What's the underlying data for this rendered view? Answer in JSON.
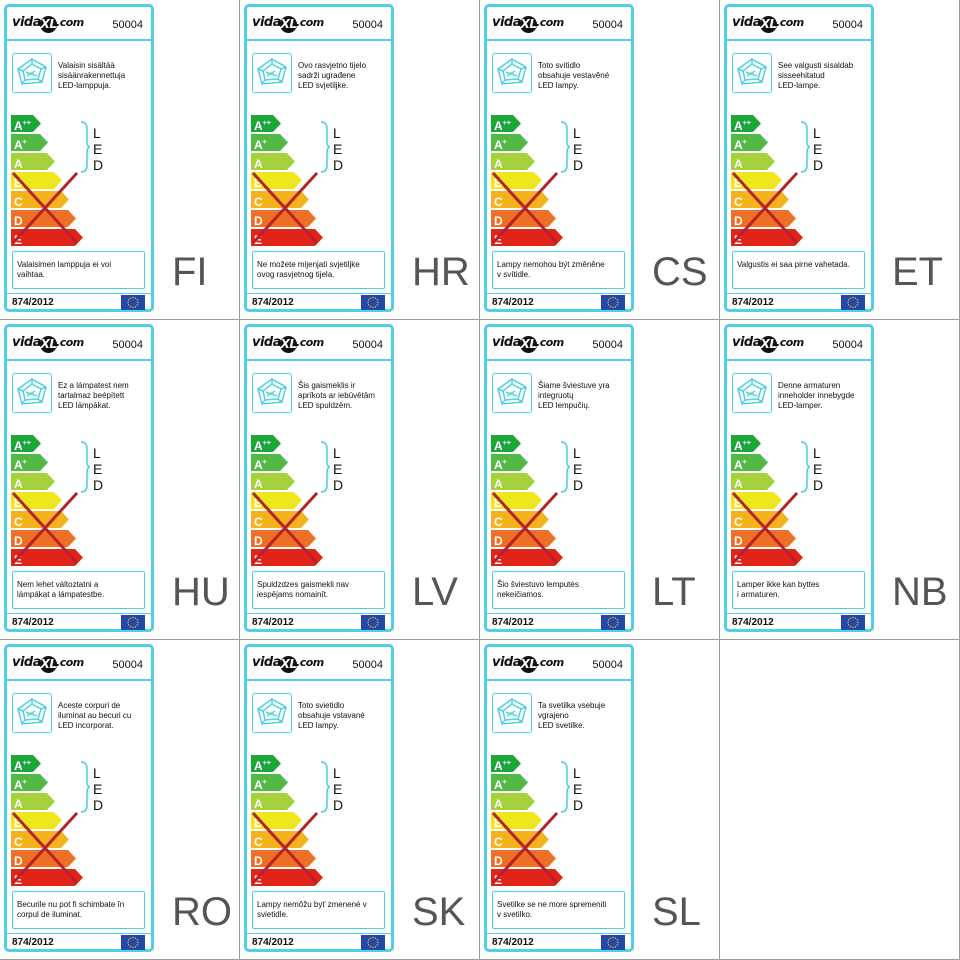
{
  "brand": {
    "name": "vida",
    "mark": "XL",
    "suffix": ".com"
  },
  "model": "50004",
  "led_letters": [
    "L",
    "E",
    "D"
  ],
  "energy_classes": [
    {
      "letter": "A",
      "sup": "++",
      "color": "#1ea53a"
    },
    {
      "letter": "A",
      "sup": "+",
      "color": "#52b947"
    },
    {
      "letter": "A",
      "sup": "",
      "color": "#a5d13d"
    },
    {
      "letter": "B",
      "sup": "",
      "color": "#f0e61c"
    },
    {
      "letter": "C",
      "sup": "",
      "color": "#f6b21c"
    },
    {
      "letter": "D",
      "sup": "",
      "color": "#ef6f24"
    },
    {
      "letter": "E",
      "sup": "",
      "color": "#e2231a"
    }
  ],
  "accent_color": "#4fd0e4",
  "cross_color": "#b5232a",
  "regulation": "874/2012",
  "icons": {
    "lamp": "lamp-icon",
    "eu": "eu-flag-icon",
    "brace": "brace-icon"
  },
  "labels": [
    {
      "lang": "FI",
      "description": "Valaisin sisältää\nsisäänrakennettuja\nLED-lamppuja.",
      "note": "Valaisimen lamppuja ei voi\nvaihtaa."
    },
    {
      "lang": "HR",
      "description": "Ovo rasvjetno tijelo\nsadrži ugrađene\nLED svjetiljke.",
      "note": "Ne možete mijenjati svjetiljke\novog rasvjetnog tijela."
    },
    {
      "lang": "CS",
      "description": "Toto svítidlo\nobsahuje vestavěné\nLED lampy.",
      "note": "Lampy nemohou být změněne\nv svítidle."
    },
    {
      "lang": "ET",
      "description": "See valgusti sisaldab\nsisseehitatud\nLED-lampe.",
      "note": "Valgustis ei saa pirne vahetada."
    },
    {
      "lang": "HU",
      "description": "Ez a lámpatest nem\ntartalmaz beépített\nLED lámpákat.",
      "note": "Nem lehet változtatni a\nlámpákat a lámpatestbe."
    },
    {
      "lang": "LV",
      "description": "Šis gaismeklis ir\naprīkots ar iebūvētām\nLED spuldzēm.",
      "note": "Spuldzdzes gaismekli nav\niespējams nomainīt."
    },
    {
      "lang": "LT",
      "description": "Šiame šviestuve yra\nintegruotų\nLED lempučių.",
      "note": "Šio šviestuvo lemputės\nnekeičiamos."
    },
    {
      "lang": "NB",
      "description": "Denne armaturen\ninneholder innebygde\nLED-lamper.",
      "note": "Lamper ikke kan byttes\ni armaturen."
    },
    {
      "lang": "RO",
      "description": "Aceste corpuri de\niluminat au becuri cu\nLED incorporat.",
      "note": "Becurile nu pot fi schimbate în\ncorpul de iluminat."
    },
    {
      "lang": "SK",
      "description": "Toto svietidlo\nobsahuje vstavané\nLED lampy.",
      "note": "Lampy nemôžu byť zmenené v\nsvietidle."
    },
    {
      "lang": "SL",
      "description": "Ta svetilka vsebuje\nvgrajeno\nLED svetilke.",
      "note": "Svetilke se ne more spremeniti\nv svetilko."
    }
  ]
}
